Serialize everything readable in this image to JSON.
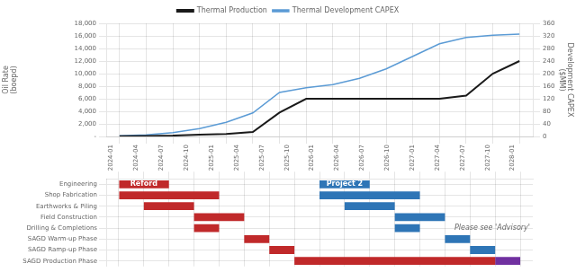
{
  "chart_data": [
    {
      "type": "line",
      "categories": [
        "2024-01",
        "2024-04",
        "2024-07",
        "2024-10",
        "2025-01",
        "2025-04",
        "2025-07",
        "2025-10",
        "2026-01",
        "2026-04",
        "2026-07",
        "2026-10",
        "2027-01",
        "2027-04",
        "2027-07",
        "2027-10"
      ],
      "series": [
        {
          "name": "Thermal Production",
          "color": "#1a1a1a",
          "values": [
            50,
            80,
            130,
            280,
            380,
            700,
            3800,
            6000,
            6000,
            6000,
            6000,
            6000,
            6000,
            6500,
            10000,
            12000
          ]
        },
        {
          "name": "Thermal Development CAPEX",
          "color": "#5b9bd5",
          "axis": "y2",
          "values": [
            2,
            5,
            12,
            25,
            45,
            75,
            140,
            155,
            165,
            185,
            215,
            255,
            295,
            315,
            322,
            326
          ]
        }
      ],
      "ylabel": "Oil Rate\n(boepd)",
      "y2label": "Development CAPEX\n($MM)",
      "ylim": [
        0,
        18000
      ],
      "yticks": [
        {
          "value": 0,
          "label": "-"
        },
        {
          "value": 2000,
          "label": "2,000"
        },
        {
          "value": 4000,
          "label": "4,000"
        },
        {
          "value": 6000,
          "label": "6,000"
        },
        {
          "value": 8000,
          "label": "8,000"
        },
        {
          "value": 10000,
          "label": "10,000"
        },
        {
          "value": 12000,
          "label": "12,000"
        },
        {
          "value": 14000,
          "label": "14,000"
        },
        {
          "value": 16000,
          "label": "16,000"
        },
        {
          "value": 18000,
          "label": "18,000"
        }
      ],
      "y2lim": [
        0,
        360
      ],
      "y2ticks": [
        0,
        40,
        80,
        120,
        160,
        200,
        240,
        280,
        320,
        360
      ],
      "grid": true,
      "legend": "top",
      "tick_labels": "y"
    },
    {
      "type": "gantt",
      "categories": [
        "Engineering",
        "Shop Fabrication",
        "Earthworks & Piling",
        "Field Construction",
        "Drilling & Completions",
        "SAGD Warm-up Phase",
        "SAGD Ramp-up Phase",
        "SAGD Production Phase"
      ],
      "bars": [
        {
          "row": "Engineering",
          "start": 0,
          "end": 2,
          "color": "#c0292a",
          "label": "Reford"
        },
        {
          "row": "Engineering",
          "start": 8,
          "end": 10,
          "color": "#2e75b6",
          "label": "Project 2"
        },
        {
          "row": "Shop Fabrication",
          "start": 0,
          "end": 4,
          "color": "#c0292a"
        },
        {
          "row": "Shop Fabrication",
          "start": 8,
          "end": 12,
          "color": "#2e75b6"
        },
        {
          "row": "Earthworks & Piling",
          "start": 1,
          "end": 3,
          "color": "#c0292a"
        },
        {
          "row": "Earthworks & Piling",
          "start": 9,
          "end": 11,
          "color": "#2e75b6"
        },
        {
          "row": "Field Construction",
          "start": 3,
          "end": 5,
          "color": "#c0292a"
        },
        {
          "row": "Field Construction",
          "start": 11,
          "end": 13,
          "color": "#2e75b6"
        },
        {
          "row": "Drilling & Completions",
          "start": 3,
          "end": 4,
          "color": "#c0292a"
        },
        {
          "row": "Drilling & Completions",
          "start": 11,
          "end": 12,
          "color": "#2e75b6"
        },
        {
          "row": "SAGD Warm-up Phase",
          "start": 5,
          "end": 6,
          "color": "#c0292a"
        },
        {
          "row": "SAGD Warm-up Phase",
          "start": 13,
          "end": 14,
          "color": "#2e75b6"
        },
        {
          "row": "SAGD Ramp-up Phase",
          "start": 6,
          "end": 7,
          "color": "#c0292a"
        },
        {
          "row": "SAGD Ramp-up Phase",
          "start": 14,
          "end": 15,
          "color": "#2e75b6"
        },
        {
          "row": "SAGD Production Phase",
          "start": 7,
          "end": 15,
          "color": "#c0292a"
        },
        {
          "row": "SAGD Production Phase",
          "start": 15,
          "end": 16,
          "color": "#7030a0"
        }
      ],
      "xlim": [
        -0.5,
        16.5
      ],
      "xticks": [
        {
          "value": 0,
          "label": "2024-01"
        },
        {
          "value": 1,
          "label": "2024-04"
        },
        {
          "value": 2,
          "label": "2024-07"
        },
        {
          "value": 3,
          "label": "2024-10"
        },
        {
          "value": 4,
          "label": "2025-01"
        },
        {
          "value": 5,
          "label": "2025-04"
        },
        {
          "value": 6,
          "label": "2025-07"
        },
        {
          "value": 7,
          "label": "2025-10"
        },
        {
          "value": 8,
          "label": "2026-01"
        },
        {
          "value": 9,
          "label": "2026-04"
        },
        {
          "value": 10,
          "label": "2026-07"
        },
        {
          "value": 11,
          "label": "2026-10"
        },
        {
          "value": 12,
          "label": "2027-01"
        },
        {
          "value": 13,
          "label": "2027-04"
        },
        {
          "value": 14,
          "label": "2027-07"
        },
        {
          "value": 15,
          "label": "2027-10"
        },
        {
          "value": 16,
          "label": "2028-01"
        }
      ],
      "grid": true,
      "annotations": [
        "Please see 'Advisory'"
      ]
    }
  ]
}
